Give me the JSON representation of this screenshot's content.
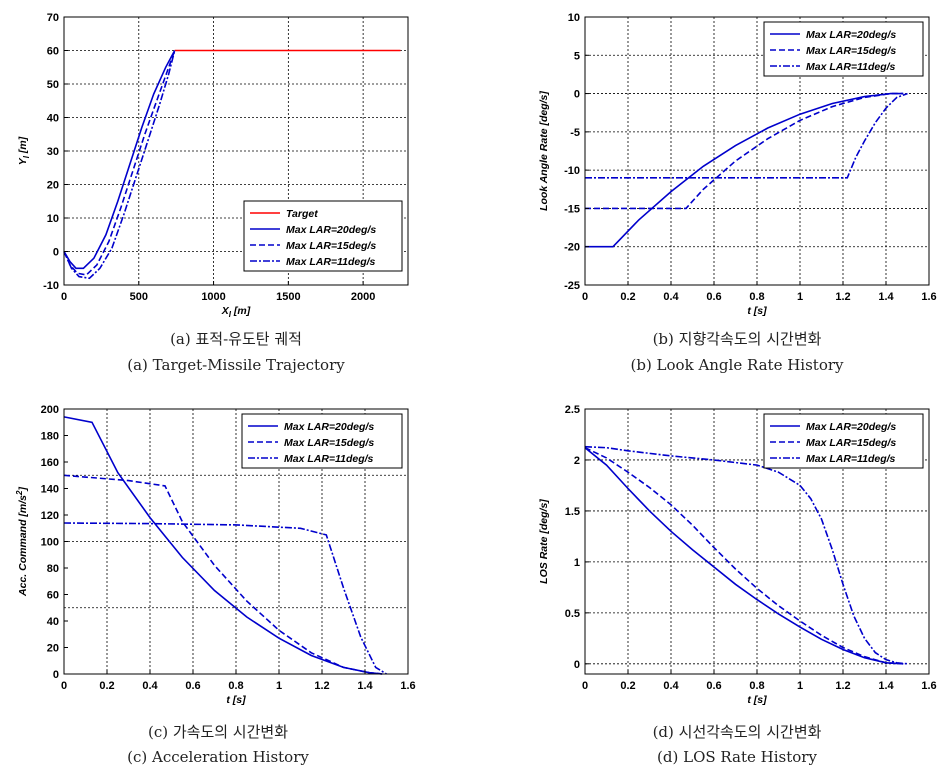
{
  "chart_data": [
    {
      "id": "a",
      "type": "line",
      "caption_ko": "(a) 표적-유도탄 궤적",
      "caption_en": "(a) Target-Missile Trajectory",
      "xlabel": "X",
      "xlabel_sub": "I",
      "xlabel_unit": "[m]",
      "ylabel": "Y",
      "ylabel_sub": "I",
      "ylabel_unit": "[m]",
      "xlim": [
        0,
        2300
      ],
      "ylim": [
        -10,
        70
      ],
      "xticks": [
        0,
        500,
        1000,
        1500,
        2000
      ],
      "yticks": [
        -10,
        0,
        10,
        20,
        30,
        40,
        50,
        60,
        70
      ],
      "xgrid": [
        0,
        500,
        1000,
        1500,
        2000,
        2300
      ],
      "ygrid": [
        -10,
        0,
        10,
        20,
        30,
        40,
        50,
        60,
        70
      ],
      "legend_position": "bottom-right",
      "series": [
        {
          "name": "Target",
          "color": "#ff0000",
          "dash": "",
          "x": [
            740,
            2250
          ],
          "y": [
            60,
            60
          ]
        },
        {
          "name": "Max LAR=20deg/s",
          "color": "#0000cc",
          "dash": "",
          "x": [
            0,
            40,
            80,
            130,
            200,
            280,
            360,
            440,
            520,
            600,
            680,
            740
          ],
          "y": [
            0,
            -3,
            -5,
            -5,
            -2,
            5,
            15,
            26,
            37,
            47,
            55,
            60
          ]
        },
        {
          "name": "Max LAR=15deg/s",
          "color": "#0000cc",
          "dash": "6,3",
          "x": [
            0,
            40,
            90,
            150,
            220,
            300,
            380,
            460,
            540,
            620,
            700,
            740
          ],
          "y": [
            0,
            -4,
            -6.5,
            -7,
            -4,
            3,
            13,
            24,
            35,
            45,
            55,
            60
          ]
        },
        {
          "name": "Max LAR=11deg/s",
          "color": "#0000cc",
          "dash": "7,2,2,2",
          "x": [
            0,
            50,
            100,
            170,
            240,
            320,
            400,
            480,
            560,
            640,
            700,
            740
          ],
          "y": [
            0,
            -5,
            -7.5,
            -8,
            -5,
            1,
            11,
            22,
            33,
            44,
            53,
            60
          ]
        }
      ]
    },
    {
      "id": "b",
      "type": "line",
      "caption_ko": "(b) 지향각속도의 시간변화",
      "caption_en": "(b) Look Angle Rate History",
      "xlabel": "t",
      "xlabel_unit": "[s]",
      "ylabel": "Look Angle Rate [deg/s]",
      "xlim": [
        0,
        1.6
      ],
      "ylim": [
        -25,
        10
      ],
      "xticks": [
        0,
        0.2,
        0.4,
        0.6,
        0.8,
        1,
        1.2,
        1.4,
        1.6
      ],
      "yticks": [
        -25,
        -20,
        -15,
        -10,
        -5,
        0,
        5,
        10
      ],
      "xgrid": [
        0,
        0.2,
        0.4,
        0.6,
        0.8,
        1,
        1.2,
        1.4,
        1.6
      ],
      "ygrid": [
        -25,
        -20,
        -15,
        -10,
        -5,
        0,
        5,
        10
      ],
      "legend_position": "top-right",
      "series": [
        {
          "name": "Max LAR=20deg/s",
          "color": "#0000cc",
          "dash": "",
          "x": [
            0,
            0.13,
            0.25,
            0.4,
            0.55,
            0.7,
            0.85,
            1.0,
            1.15,
            1.3,
            1.42,
            1.48
          ],
          "y": [
            -20,
            -20,
            -16.5,
            -12.8,
            -9.5,
            -6.8,
            -4.5,
            -2.7,
            -1.3,
            -0.4,
            0,
            0
          ]
        },
        {
          "name": "Max LAR=15deg/s",
          "color": "#0000cc",
          "dash": "6,3",
          "x": [
            0,
            0.47,
            0.55,
            0.7,
            0.85,
            1.0,
            1.15,
            1.3,
            1.42,
            1.48
          ],
          "y": [
            -15,
            -15,
            -12.5,
            -8.8,
            -5.9,
            -3.5,
            -1.7,
            -0.5,
            0,
            0
          ]
        },
        {
          "name": "Max LAR=11deg/s",
          "color": "#0000cc",
          "dash": "7,2,2,2",
          "x": [
            0,
            1.22,
            1.26,
            1.3,
            1.35,
            1.4,
            1.45,
            1.5
          ],
          "y": [
            -11,
            -11,
            -8.3,
            -6.2,
            -3.8,
            -1.9,
            -0.5,
            0
          ]
        }
      ]
    },
    {
      "id": "c",
      "type": "line",
      "caption_ko": "(c) 가속도의 시간변화",
      "caption_en": "(c) Acceleration History",
      "xlabel": "t",
      "xlabel_unit": "[s]",
      "ylabel": "Acc. Command [m/s",
      "ylabel_sup": "2",
      "ylabel_end": "]",
      "xlim": [
        0,
        1.6
      ],
      "ylim": [
        0,
        200
      ],
      "xticks": [
        0,
        0.2,
        0.4,
        0.6,
        0.8,
        1,
        1.2,
        1.4,
        1.6
      ],
      "yticks": [
        0,
        20,
        40,
        60,
        80,
        100,
        120,
        140,
        160,
        180,
        200
      ],
      "xgrid": [
        0,
        0.2,
        0.4,
        0.6,
        0.8,
        1,
        1.2,
        1.4,
        1.6
      ],
      "ygrid": [
        0,
        50,
        100,
        150,
        200
      ],
      "legend_position": "top-right",
      "series": [
        {
          "name": "Max LAR=20deg/s",
          "color": "#0000cc",
          "dash": "",
          "x": [
            0,
            0.13,
            0.25,
            0.4,
            0.55,
            0.7,
            0.85,
            1.0,
            1.15,
            1.3,
            1.42,
            1.48
          ],
          "y": [
            194,
            190,
            152,
            118,
            88,
            63,
            43,
            27,
            14,
            5,
            1,
            0
          ]
        },
        {
          "name": "Max LAR=15deg/s",
          "color": "#0000cc",
          "dash": "6,3",
          "x": [
            0,
            0.3,
            0.47,
            0.55,
            0.7,
            0.85,
            1.0,
            1.15,
            1.3,
            1.42,
            1.48
          ],
          "y": [
            150,
            146,
            142,
            115,
            82,
            55,
            33,
            16,
            5,
            1,
            0
          ]
        },
        {
          "name": "Max LAR=11deg/s",
          "color": "#0000cc",
          "dash": "7,2,2,2",
          "x": [
            0,
            0.4,
            0.8,
            1.1,
            1.22,
            1.3,
            1.38,
            1.45,
            1.5
          ],
          "y": [
            114,
            113.5,
            112.5,
            110,
            105,
            65,
            28,
            5,
            0
          ]
        }
      ]
    },
    {
      "id": "d",
      "type": "line",
      "caption_ko": "(d) 시선각속도의 시간변화",
      "caption_en": "(d) LOS Rate History",
      "xlabel": "t",
      "xlabel_unit": "[s]",
      "ylabel": "LOS Rate [deg/s]",
      "xlim": [
        0,
        1.6
      ],
      "ylim": [
        -0.1,
        2.5
      ],
      "xticks": [
        0,
        0.2,
        0.4,
        0.6,
        0.8,
        1,
        1.2,
        1.4,
        1.6
      ],
      "yticks": [
        0,
        0.5,
        1,
        1.5,
        2,
        2.5
      ],
      "xgrid": [
        0,
        0.2,
        0.4,
        0.6,
        0.8,
        1,
        1.2,
        1.4,
        1.6
      ],
      "ygrid": [
        0,
        0.5,
        1,
        1.5,
        2,
        2.5
      ],
      "legend_position": "top-right",
      "series": [
        {
          "name": "Max LAR=20deg/s",
          "color": "#0000cc",
          "dash": "",
          "x": [
            0,
            0.1,
            0.2,
            0.3,
            0.4,
            0.5,
            0.6,
            0.7,
            0.8,
            0.9,
            1.0,
            1.1,
            1.2,
            1.3,
            1.4,
            1.48
          ],
          "y": [
            2.12,
            1.95,
            1.72,
            1.5,
            1.3,
            1.12,
            0.95,
            0.78,
            0.63,
            0.49,
            0.36,
            0.24,
            0.14,
            0.06,
            0.01,
            0
          ]
        },
        {
          "name": "Max LAR=15deg/s",
          "color": "#0000cc",
          "dash": "6,3",
          "x": [
            0,
            0.1,
            0.2,
            0.3,
            0.4,
            0.5,
            0.6,
            0.7,
            0.8,
            0.9,
            1.0,
            1.1,
            1.2,
            1.3,
            1.4,
            1.48
          ],
          "y": [
            2.12,
            2.02,
            1.88,
            1.73,
            1.56,
            1.36,
            1.14,
            0.93,
            0.74,
            0.57,
            0.42,
            0.28,
            0.16,
            0.07,
            0.01,
            0
          ]
        },
        {
          "name": "Max LAR=11deg/s",
          "color": "#0000cc",
          "dash": "7,2,2,2",
          "x": [
            0,
            0.1,
            0.2,
            0.4,
            0.6,
            0.8,
            0.9,
            1.0,
            1.05,
            1.1,
            1.15,
            1.2,
            1.25,
            1.3,
            1.35,
            1.4,
            1.45,
            1.5
          ],
          "y": [
            2.13,
            2.12,
            2.09,
            2.04,
            2.0,
            1.95,
            1.88,
            1.75,
            1.62,
            1.42,
            1.12,
            0.78,
            0.47,
            0.25,
            0.11,
            0.04,
            0.01,
            0
          ]
        }
      ]
    }
  ]
}
